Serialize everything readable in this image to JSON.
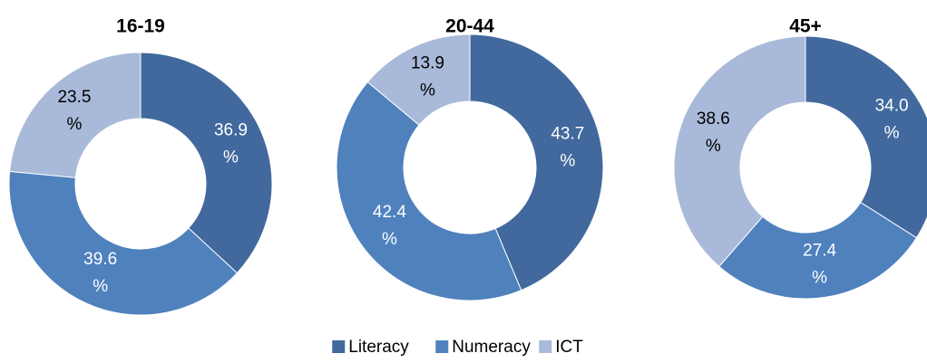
{
  "chart_data": [
    {
      "type": "doughnut",
      "title": "16-19",
      "categories": [
        "Literacy",
        "Numeracy",
        "ICT"
      ],
      "values": [
        36.9,
        39.6,
        23.5
      ],
      "value_labels": [
        "36.9 %",
        "39.6 %",
        "23.5 %"
      ],
      "colors": [
        "#41699d",
        "#4f81bd",
        "#a9b9d9"
      ]
    },
    {
      "type": "doughnut",
      "title": "20-44",
      "categories": [
        "Literacy",
        "Numeracy",
        "ICT"
      ],
      "values": [
        43.7,
        42.4,
        13.9
      ],
      "value_labels": [
        "43.7 %",
        "42.4 %",
        "13.9 %"
      ],
      "colors": [
        "#41699d",
        "#4f81bd",
        "#a9b9d9"
      ]
    },
    {
      "type": "doughnut",
      "title": "45+",
      "categories": [
        "Literacy",
        "Numeracy",
        "ICT"
      ],
      "values": [
        34.0,
        27.4,
        38.6
      ],
      "value_labels": [
        "34.0 %",
        "27.4 %",
        "38.6 %"
      ],
      "colors": [
        "#41699d",
        "#4f81bd",
        "#a9b9d9"
      ]
    }
  ]
}
